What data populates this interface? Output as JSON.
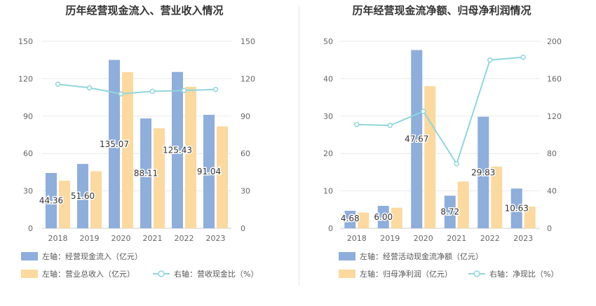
{
  "chart_data": [
    {
      "type": "bar",
      "title": "历年经营现金流入、营业收入情况",
      "categories": [
        "2018",
        "2019",
        "2020",
        "2021",
        "2022",
        "2023"
      ],
      "series": [
        {
          "name": "左轴：经营现金流入（亿元）",
          "axis": "left",
          "kind": "bar",
          "color": "#8eaedc",
          "values": [
            44.36,
            51.6,
            135.07,
            88.11,
            125.43,
            91.04
          ],
          "labels": [
            "44.36",
            "51.60",
            "135.07",
            "88.11",
            "125.43",
            "91.04"
          ]
        },
        {
          "name": "左轴：营业总收入（亿元）",
          "axis": "left",
          "kind": "bar",
          "color": "#fcd99e",
          "values": [
            38.2,
            45.8,
            125.2,
            80.2,
            113.5,
            81.8
          ]
        },
        {
          "name": "右轴：营收现金比（%）",
          "axis": "right",
          "kind": "line",
          "color": "#8fd6dc",
          "values": [
            115.6,
            112.7,
            107.9,
            109.9,
            110.5,
            111.4
          ]
        }
      ],
      "yleft": {
        "min": 0,
        "max": 150,
        "ticks": [
          0,
          30,
          60,
          90,
          120,
          150
        ]
      },
      "yright": {
        "min": 0,
        "max": 150,
        "ticks": [
          0,
          30,
          60,
          90,
          120,
          150
        ]
      },
      "grid": true,
      "legend_position": "bottom-left"
    },
    {
      "type": "bar",
      "title": "历年经营现金流净额、归母净利润情况",
      "categories": [
        "2018",
        "2019",
        "2020",
        "2021",
        "2022",
        "2023"
      ],
      "series": [
        {
          "name": "左轴：经营活动现金流净额（亿元）",
          "axis": "left",
          "kind": "bar",
          "color": "#8eaedc",
          "values": [
            4.68,
            6.0,
            47.67,
            8.72,
            29.83,
            10.63
          ],
          "labels": [
            "4.68",
            "6.00",
            "47.67",
            "8.72",
            "29.83",
            "10.63"
          ]
        },
        {
          "name": "左轴：归母净利润（亿元）",
          "axis": "left",
          "kind": "bar",
          "color": "#fcd99e",
          "values": [
            4.2,
            5.5,
            38.0,
            12.5,
            16.5,
            5.8
          ]
        },
        {
          "name": "右轴：净现比（%）",
          "axis": "right",
          "kind": "line",
          "color": "#8fd6dc",
          "values": [
            111,
            110,
            125,
            69,
            180,
            183
          ]
        }
      ],
      "yleft": {
        "min": 0,
        "max": 50,
        "ticks": [
          0,
          10,
          20,
          30,
          40,
          50
        ]
      },
      "yright": {
        "min": 0,
        "max": 200,
        "ticks": [
          0,
          40,
          80,
          120,
          160,
          200
        ]
      },
      "grid": true,
      "legend_position": "bottom-left"
    }
  ]
}
